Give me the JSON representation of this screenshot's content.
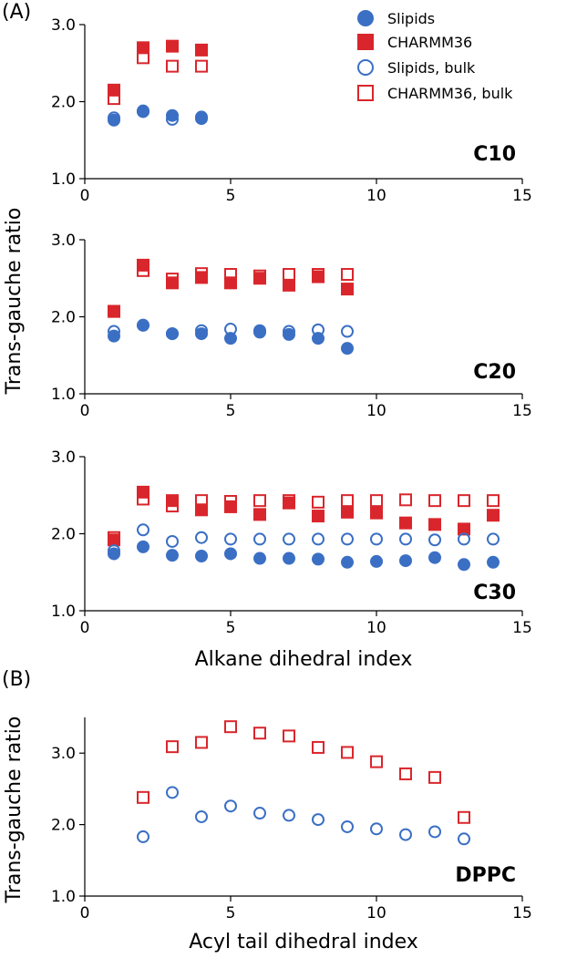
{
  "panel_labels": [
    "(A)",
    "(B)"
  ],
  "ylabel_A": "Trans-gauche ratio",
  "ylabel_B": "Trans-gauche ratio",
  "xlabel_A": "Alkane dihedral index",
  "xlabel_B": "Acyl tail dihedral index",
  "legend": [
    {
      "label": "Slipids",
      "marker": "circle-filled",
      "color": "#3a6fc4"
    },
    {
      "label": "CHARMM36",
      "marker": "square-filled",
      "color": "#d9262c"
    },
    {
      "label": "Slipids, bulk",
      "marker": "circle-open",
      "color": "#3a6fc4"
    },
    {
      "label": "CHARMM36, bulk",
      "marker": "square-open",
      "color": "#d9262c"
    }
  ],
  "colors": {
    "slipids": "#3a6fc4",
    "charmm": "#d9262c"
  },
  "chart_data": [
    {
      "type": "scatter",
      "tag": "C10",
      "xlim": [
        0,
        15
      ],
      "ylim": [
        1.0,
        3.0
      ],
      "xticks": [
        "0",
        "5",
        "10",
        "15"
      ],
      "yticks": [
        "1.0",
        "2.0",
        "3.0"
      ],
      "series": [
        {
          "name": "Slipids",
          "x": [
            1,
            2,
            3,
            4
          ],
          "y": [
            1.76,
            1.87,
            1.82,
            1.78
          ]
        },
        {
          "name": "CHARMM36",
          "x": [
            1,
            2,
            3,
            4
          ],
          "y": [
            2.15,
            2.7,
            2.72,
            2.67
          ]
        },
        {
          "name": "Slipids, bulk",
          "x": [
            1,
            2,
            3,
            4
          ],
          "y": [
            1.79,
            1.88,
            1.77,
            1.8
          ]
        },
        {
          "name": "CHARMM36, bulk",
          "x": [
            1,
            2,
            3,
            4
          ],
          "y": [
            2.04,
            2.57,
            2.46,
            2.46
          ]
        }
      ]
    },
    {
      "type": "scatter",
      "tag": "C20",
      "xlim": [
        0,
        15
      ],
      "ylim": [
        1.0,
        3.0
      ],
      "xticks": [
        "0",
        "5",
        "10",
        "15"
      ],
      "yticks": [
        "1.0",
        "2.0",
        "3.0"
      ],
      "series": [
        {
          "name": "Slipids",
          "x": [
            1,
            2,
            3,
            4,
            5,
            6,
            7,
            8,
            9
          ],
          "y": [
            1.75,
            1.89,
            1.78,
            1.78,
            1.72,
            1.8,
            1.77,
            1.72,
            1.59
          ]
        },
        {
          "name": "CHARMM36",
          "x": [
            1,
            2,
            3,
            4,
            5,
            6,
            7,
            8,
            9
          ],
          "y": [
            2.07,
            2.67,
            2.44,
            2.51,
            2.44,
            2.5,
            2.41,
            2.52,
            2.36
          ]
        },
        {
          "name": "Slipids, bulk",
          "x": [
            1,
            2,
            3,
            4,
            5,
            6,
            7,
            8,
            9
          ],
          "y": [
            1.81,
            1.89,
            1.78,
            1.82,
            1.84,
            1.82,
            1.81,
            1.83,
            1.81
          ]
        },
        {
          "name": "CHARMM36, bulk",
          "x": [
            1,
            2,
            3,
            4,
            5,
            6,
            7,
            8,
            9
          ],
          "y": [
            2.07,
            2.6,
            2.49,
            2.56,
            2.55,
            2.53,
            2.55,
            2.55,
            2.55
          ]
        }
      ]
    },
    {
      "type": "scatter",
      "tag": "C30",
      "xlim": [
        0,
        15
      ],
      "ylim": [
        1.0,
        3.0
      ],
      "xticks": [
        "0",
        "5",
        "10",
        "15"
      ],
      "yticks": [
        "1.0",
        "2.0",
        "3.0"
      ],
      "series": [
        {
          "name": "Slipids",
          "x": [
            1,
            2,
            3,
            4,
            5,
            6,
            7,
            8,
            9,
            10,
            11,
            12,
            13,
            14
          ],
          "y": [
            1.74,
            1.83,
            1.72,
            1.71,
            1.74,
            1.68,
            1.68,
            1.67,
            1.63,
            1.64,
            1.65,
            1.69,
            1.6,
            1.63
          ]
        },
        {
          "name": "CHARMM36",
          "x": [
            1,
            2,
            3,
            4,
            5,
            6,
            7,
            8,
            9,
            10,
            11,
            12,
            13,
            14
          ],
          "y": [
            1.92,
            2.54,
            2.43,
            2.31,
            2.35,
            2.25,
            2.4,
            2.23,
            2.28,
            2.27,
            2.14,
            2.12,
            2.06,
            2.24
          ]
        },
        {
          "name": "Slipids, bulk",
          "x": [
            1,
            2,
            3,
            4,
            5,
            6,
            7,
            8,
            9,
            10,
            11,
            12,
            13,
            14
          ],
          "y": [
            1.78,
            2.05,
            1.9,
            1.95,
            1.93,
            1.93,
            1.93,
            1.93,
            1.93,
            1.93,
            1.93,
            1.92,
            1.93,
            1.93
          ]
        },
        {
          "name": "CHARMM36, bulk",
          "x": [
            1,
            2,
            3,
            4,
            5,
            6,
            7,
            8,
            9,
            10,
            11,
            12,
            13,
            14
          ],
          "y": [
            1.95,
            2.45,
            2.36,
            2.43,
            2.42,
            2.43,
            2.43,
            2.41,
            2.43,
            2.43,
            2.44,
            2.43,
            2.43,
            2.43
          ]
        }
      ]
    },
    {
      "type": "scatter",
      "tag": "DPPC",
      "xlim": [
        0,
        15
      ],
      "ylim": [
        1.0,
        3.5
      ],
      "xticks": [
        "0",
        "5",
        "10",
        "15"
      ],
      "yticks": [
        "1.0",
        "2.0",
        "3.0"
      ],
      "series": [
        {
          "name": "Slipids, bulk",
          "x": [
            2,
            3,
            4,
            5,
            6,
            7,
            8,
            9,
            10,
            11,
            12,
            13
          ],
          "y": [
            1.83,
            2.45,
            2.11,
            2.26,
            2.16,
            2.13,
            2.07,
            1.97,
            1.94,
            1.86,
            1.9,
            1.8
          ]
        },
        {
          "name": "CHARMM36, bulk",
          "x": [
            2,
            3,
            4,
            5,
            6,
            7,
            8,
            9,
            10,
            11,
            12,
            13
          ],
          "y": [
            2.38,
            3.09,
            3.15,
            3.37,
            3.28,
            3.24,
            3.08,
            3.01,
            2.88,
            2.71,
            2.66,
            2.1
          ]
        }
      ]
    }
  ]
}
